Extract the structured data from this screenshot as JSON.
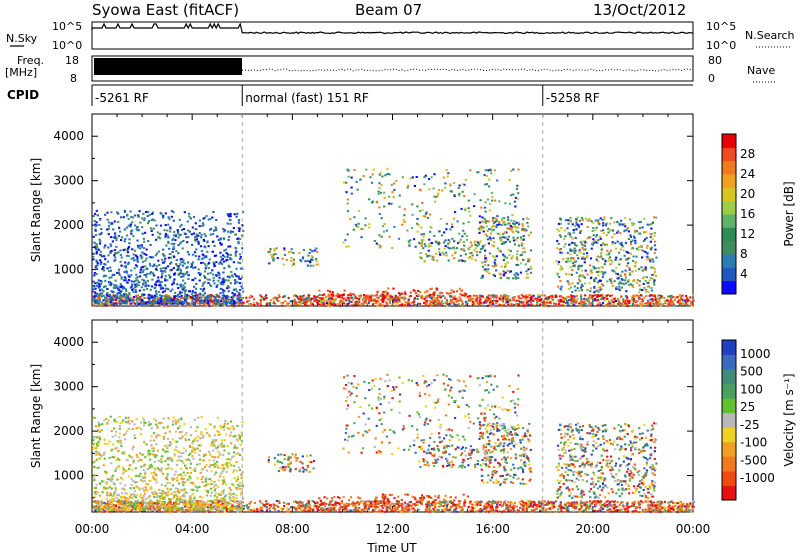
{
  "header": {
    "left_title": "Syowa East (fitACF)",
    "center_title": "Beam 07",
    "date": "13/Oct/2012"
  },
  "top_panels": {
    "nsky_label": "N.Sky",
    "nsky_ticks": [
      "10^5",
      "10^0"
    ],
    "nsearch_label": "N.Search",
    "nsearch_ticks": [
      "10^5",
      "10^0"
    ],
    "freq_label_1": "Freq.",
    "freq_label_2": "[MHz]",
    "freq_ticks": [
      "18",
      "8"
    ],
    "nave_label": "Nave",
    "nave_ticks": [
      "80",
      "0"
    ],
    "cpid_label": "CPID",
    "cpid_segments": [
      {
        "label": "-5261 RF",
        "start_hour": 0
      },
      {
        "label": "normal (fast) 151 RF",
        "start_hour": 6
      },
      {
        "label": "-5258 RF",
        "start_hour": 18
      }
    ]
  },
  "chart_data": [
    {
      "type": "heatmap",
      "title": "Power",
      "xlabel": "Time UT",
      "ylabel": "Slant Range [km]",
      "x_ticks": [
        "00:00",
        "04:00",
        "08:00",
        "12:00",
        "16:00",
        "20:00",
        "00:00"
      ],
      "x_range_hours": [
        0,
        24
      ],
      "y_ticks": [
        1000,
        2000,
        3000,
        4000
      ],
      "ylim": [
        180,
        4500
      ],
      "colorbar": {
        "label": "Power [dB]",
        "ticks": [
          "4",
          "8",
          "12",
          "16",
          "20",
          "24",
          "28"
        ],
        "colors": [
          "#0a0aff",
          "#1e5abe",
          "#2a7cb5",
          "#3f8c5f",
          "#2e8a57",
          "#5fb36a",
          "#9ccc4a",
          "#d8c520",
          "#f0a020",
          "#f07a20",
          "#f04a20",
          "#e80000"
        ]
      },
      "mode_boundaries_hours": [
        6,
        18
      ]
    },
    {
      "type": "heatmap",
      "title": "Velocity",
      "xlabel": "Time UT",
      "ylabel": "Slant Range [km]",
      "x_ticks": [
        "00:00",
        "04:00",
        "08:00",
        "12:00",
        "16:00",
        "20:00",
        "00:00"
      ],
      "x_range_hours": [
        0,
        24
      ],
      "y_ticks": [
        1000,
        2000,
        3000,
        4000
      ],
      "ylim": [
        180,
        4500
      ],
      "colorbar": {
        "label": "Velocity [m s⁻¹]",
        "ticks": [
          "1000",
          "500",
          "100",
          "25",
          "-25",
          "-100",
          "-500",
          "-1000"
        ],
        "colors": [
          "#2040c0",
          "#3a6abf",
          "#3f8c7a",
          "#4aa060",
          "#60c030",
          "#b8b8b8",
          "#f0d020",
          "#f0a020",
          "#f07a20",
          "#f04a10",
          "#e81010"
        ]
      },
      "mode_boundaries_hours": [
        6,
        18
      ]
    }
  ]
}
